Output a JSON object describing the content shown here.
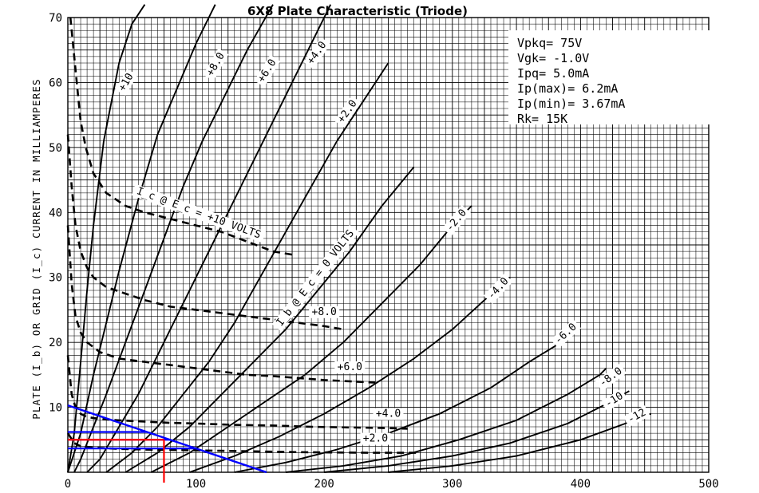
{
  "chart_data": {
    "type": "line",
    "title": "6X8 Plate Characteristic (Triode)",
    "ylabel": "PLATE (I_b) OR GRID (I_c) CURRENT IN MILLIAMPERES",
    "xlabel": "",
    "xlim": [
      0,
      500
    ],
    "ylim": [
      0,
      70
    ],
    "x_ticks": [
      0,
      100,
      200,
      300,
      400,
      500
    ],
    "y_ticks": [
      10,
      20,
      30,
      40,
      50,
      60,
      70
    ],
    "grid": true,
    "plate_series": [
      {
        "name": "+10",
        "x": [
          0,
          5,
          10,
          15,
          20,
          28,
          40,
          50,
          60
        ],
        "y": [
          0,
          6,
          17,
          28,
          38,
          51,
          63,
          69,
          72
        ]
      },
      {
        "name": "+8.0",
        "x": [
          0,
          5,
          10,
          20,
          30,
          40,
          55,
          70,
          85,
          100,
          115
        ],
        "y": [
          0,
          3,
          6,
          15,
          23,
          31,
          42,
          52,
          59,
          66,
          72
        ]
      },
      {
        "name": "+6.0",
        "x": [
          5,
          10,
          20,
          30,
          45,
          60,
          75,
          90,
          105,
          120,
          140,
          160
        ],
        "y": [
          0,
          2,
          7,
          12,
          20,
          28,
          36,
          44,
          51,
          57,
          65,
          72
        ]
      },
      {
        "name": "+4.0",
        "x": [
          15,
          25,
          40,
          55,
          70,
          90,
          110,
          130,
          150,
          170,
          190,
          205
        ],
        "y": [
          0,
          2,
          7,
          12,
          18,
          26,
          34,
          42,
          50,
          58,
          66,
          72
        ]
      },
      {
        "name": "+2.0",
        "x": [
          30,
          50,
          70,
          90,
          110,
          130,
          150,
          170,
          190,
          210,
          230,
          250
        ],
        "y": [
          0,
          3,
          7,
          12,
          17,
          23,
          30,
          37,
          44,
          51,
          57,
          63
        ]
      },
      {
        "name": "I_b @ E_c = 0 VOLTS",
        "x": [
          45,
          70,
          95,
          120,
          145,
          170,
          195,
          220,
          245,
          270
        ],
        "y": [
          0,
          3,
          7,
          12,
          17,
          22,
          28,
          34,
          41,
          47
        ]
      },
      {
        "name": "-2.0",
        "x": [
          65,
          95,
          125,
          155,
          185,
          215,
          245,
          275,
          300,
          315
        ],
        "y": [
          0,
          3,
          7,
          11,
          15,
          20,
          26,
          32,
          38,
          41
        ]
      },
      {
        "name": "-4.0",
        "x": [
          95,
          130,
          165,
          200,
          235,
          270,
          300,
          325,
          345
        ],
        "y": [
          0,
          2.5,
          5.5,
          9,
          13,
          17.5,
          22,
          26.5,
          30
        ]
      },
      {
        "name": "-6.0",
        "x": [
          130,
          170,
          210,
          250,
          290,
          330,
          360,
          385,
          395
        ],
        "y": [
          0,
          1.5,
          3.5,
          6,
          9,
          13,
          17,
          20,
          21.5
        ]
      },
      {
        "name": "-8.0",
        "x": [
          170,
          215,
          260,
          305,
          350,
          390,
          415,
          420
        ],
        "y": [
          0,
          1,
          2.5,
          5,
          8,
          12,
          15,
          16
        ]
      },
      {
        "name": "-10",
        "x": [
          200,
          250,
          300,
          345,
          390,
          420,
          438
        ],
        "y": [
          0,
          1,
          2.5,
          4.5,
          7.5,
          10.5,
          12.5
        ]
      },
      {
        "name": "-12",
        "x": [
          250,
          300,
          350,
          400,
          435,
          455
        ],
        "y": [
          0,
          1,
          2.5,
          5,
          7.5,
          9
        ]
      }
    ],
    "grid_series": [
      {
        "name": "I_c @ E_c = +10 VOLTS",
        "x": [
          2,
          4,
          6,
          8,
          10,
          14,
          20,
          30,
          45,
          60,
          80,
          100,
          120,
          140,
          160,
          175
        ],
        "y": [
          70,
          66,
          62,
          58,
          54,
          50,
          46,
          43,
          41,
          40,
          39,
          38,
          37,
          35.5,
          34,
          33.5
        ]
      },
      {
        "name": "+8.0",
        "x": [
          0,
          3,
          6,
          10,
          15,
          20,
          30,
          45,
          60,
          80,
          100,
          120,
          140,
          160,
          180,
          200,
          215
        ],
        "y": [
          52,
          44,
          38,
          34,
          31.5,
          30,
          28.5,
          27.5,
          26.5,
          25.5,
          25,
          24.5,
          24,
          23.5,
          23,
          22.5,
          22
        ]
      },
      {
        "name": "+6.0",
        "x": [
          0,
          3,
          6,
          10,
          15,
          25,
          40,
          60,
          80,
          100,
          120,
          140,
          160,
          180,
          200,
          220,
          240
        ],
        "y": [
          38,
          29,
          24,
          21.5,
          20,
          18.5,
          17.5,
          17,
          16.5,
          16,
          15.5,
          15,
          14.8,
          14.5,
          14.2,
          14,
          13.8
        ]
      },
      {
        "name": "+4.0",
        "x": [
          0,
          3,
          6,
          10,
          15,
          25,
          40,
          60,
          80,
          100,
          130,
          160,
          190,
          220,
          250,
          265
        ],
        "y": [
          18,
          12,
          10,
          9,
          8.5,
          8.2,
          8,
          7.8,
          7.6,
          7.5,
          7.3,
          7.2,
          7,
          6.9,
          6.8,
          6.7
        ]
      },
      {
        "name": "+2.0",
        "x": [
          0,
          5,
          10,
          20,
          40,
          60,
          90,
          120,
          150,
          180,
          210,
          240,
          275
        ],
        "y": [
          6,
          4.5,
          4,
          3.8,
          3.6,
          3.5,
          3.4,
          3.3,
          3.2,
          3.1,
          3.05,
          3,
          3
        ]
      }
    ],
    "load_line": {
      "x": [
        0,
        155
      ],
      "y": [
        10.3,
        0
      ],
      "color": "#0000ff"
    },
    "operating_lines": {
      "blue_levels_mA": [
        6.2,
        5.0,
        3.67
      ],
      "red_level_mA": 5.0,
      "red_vertical_x": 75,
      "blue_color": "#0000ff",
      "red_color": "#ff0000"
    },
    "annotations": {
      "grid_curve_labels": [
        "I_c @ E_c = +10 VOLTS",
        "+8.0",
        "+6.0",
        "+4.0",
        "+2.0"
      ]
    }
  },
  "info": {
    "vpkq": "Vpkq= 75V",
    "vgk": "Vgk= -1.0V",
    "ipq": "Ipq= 5.0mA",
    "ipmax": "Ip(max)= 6.2mA",
    "ipmin": "Ip(min)= 3.67mA",
    "rk": "Rk= 15K"
  }
}
